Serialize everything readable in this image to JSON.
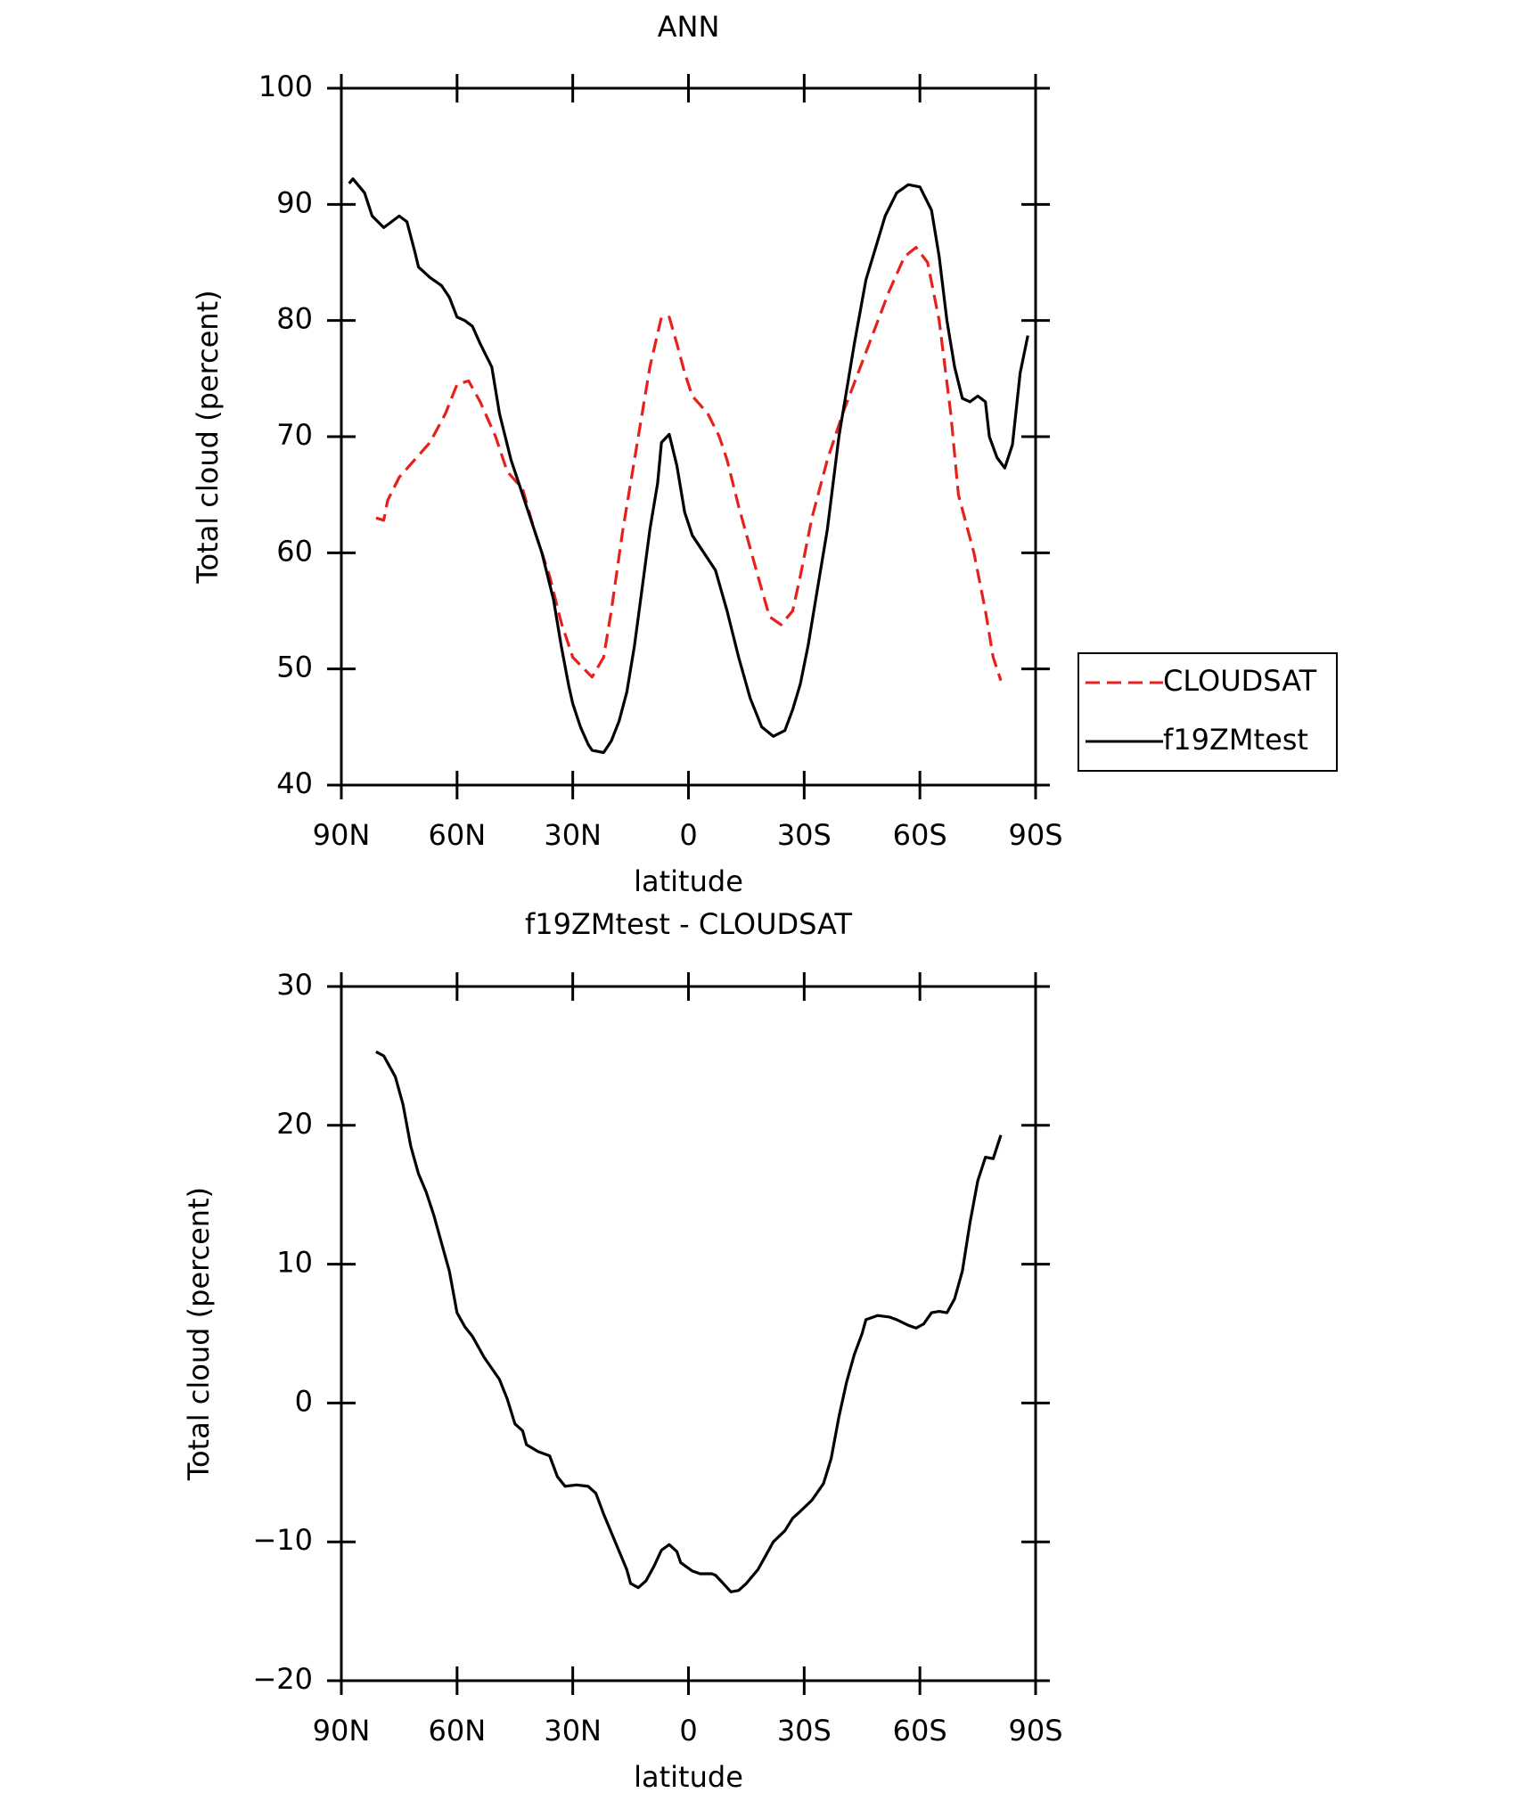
{
  "chart_data": [
    {
      "type": "line",
      "title": "ANN",
      "xlabel": "latitude",
      "ylabel": "Total cloud (percent)",
      "xlim": [
        90,
        -90
      ],
      "xticks": [
        {
          "value": 90,
          "label": "90N"
        },
        {
          "value": 60,
          "label": "60N"
        },
        {
          "value": 30,
          "label": "30N"
        },
        0,
        {
          "value": -30,
          "label": "30S"
        },
        {
          "value": -60,
          "label": "60S"
        },
        {
          "value": -90,
          "label": "90S"
        }
      ],
      "ylim": [
        40,
        100
      ],
      "yticks": [
        40,
        50,
        60,
        70,
        80,
        90,
        100
      ],
      "series": [
        {
          "name": "CLOUDSAT",
          "color": "#e8201c",
          "linestyle": "dashed",
          "x": [
            81,
            79,
            78,
            75,
            71,
            67,
            63,
            60,
            57,
            54,
            50,
            47,
            43,
            40,
            36,
            33,
            30,
            25,
            22,
            20,
            17,
            13,
            10,
            7,
            5,
            3,
            1,
            -1,
            -5,
            -8,
            -10,
            -13,
            -18,
            -21,
            -24,
            -27,
            -29,
            -32,
            -36,
            -40,
            -44,
            -48,
            -52,
            -56,
            -59,
            -62,
            -65,
            -68,
            -70,
            -74,
            -77,
            -79,
            -81
          ],
          "values": [
            63,
            62.8,
            64.5,
            66.5,
            68,
            69.5,
            72,
            74.5,
            74.8,
            73,
            70,
            67,
            65.5,
            62,
            58,
            54,
            51,
            49.3,
            51,
            55,
            62,
            70,
            76,
            80.3,
            80.3,
            78,
            75.5,
            73.5,
            72,
            70,
            68,
            64,
            58,
            54.5,
            53.8,
            55,
            58,
            63,
            68,
            72,
            75.5,
            79,
            82.5,
            85.5,
            86.3,
            85,
            80,
            72,
            65,
            60,
            55,
            51,
            49
          ]
        },
        {
          "name": "f19ZMtest",
          "color": "#000000",
          "linestyle": "solid",
          "x": [
            88,
            87,
            84,
            82,
            79,
            77,
            75,
            73,
            71,
            70,
            67,
            64,
            62,
            60,
            58,
            56,
            54,
            51,
            49,
            46,
            44,
            43,
            40,
            38,
            35,
            33,
            31,
            30,
            28,
            26,
            25,
            22,
            20,
            18,
            16,
            14,
            12,
            10,
            8,
            7,
            5,
            3,
            1,
            -1,
            -4,
            -7,
            -10,
            -13,
            -16,
            -19,
            -22,
            -25,
            -27,
            -29,
            -31,
            -33,
            -36,
            -39,
            -43,
            -46,
            -49,
            -51,
            -54,
            -57,
            -60,
            -63,
            -65,
            -67,
            -69,
            -71,
            -73,
            -75,
            -77,
            -78,
            -80,
            -82,
            -84,
            -86,
            -88
          ],
          "values": [
            91.8,
            92.2,
            91,
            89,
            88,
            88.5,
            89,
            88.5,
            86,
            84.6,
            83.7,
            83,
            82,
            80.3,
            80,
            79.5,
            78,
            76,
            72,
            68,
            66,
            65,
            62,
            60,
            56,
            52,
            48.5,
            47,
            45,
            43.5,
            43,
            42.8,
            43.8,
            45.5,
            48,
            52,
            57,
            62,
            66,
            69.5,
            70.2,
            67.5,
            63.5,
            61.5,
            60,
            58.5,
            55,
            51,
            47.5,
            45,
            44.2,
            44.7,
            46.5,
            48.7,
            52,
            56,
            62,
            70,
            78,
            83.5,
            86.8,
            89,
            91,
            91.7,
            91.5,
            89.5,
            85.5,
            80,
            76,
            73.3,
            73,
            73.5,
            73,
            70,
            68.2,
            67.3,
            69.3,
            75.5,
            78.7
          ]
        }
      ]
    },
    {
      "type": "line",
      "title": "f19ZMtest - CLOUDSAT",
      "xlabel": "latitude",
      "ylabel": "Total cloud (percent)",
      "xlim": [
        90,
        -90
      ],
      "xticks": [
        {
          "value": 90,
          "label": "90N"
        },
        {
          "value": 60,
          "label": "60N"
        },
        {
          "value": 30,
          "label": "30N"
        },
        0,
        {
          "value": -30,
          "label": "30S"
        },
        {
          "value": -60,
          "label": "60S"
        },
        {
          "value": -90,
          "label": "90S"
        }
      ],
      "ylim": [
        -20,
        30
      ],
      "yticks": [
        {
          "value": -20,
          "label": "−20"
        },
        {
          "value": -10,
          "label": "−10"
        },
        0,
        10,
        20,
        30
      ],
      "color": "#000000",
      "x": [
        81,
        79,
        76,
        74,
        72,
        70,
        68,
        66,
        64,
        62,
        60,
        58,
        56,
        54,
        53,
        51,
        49,
        47,
        45,
        43,
        42,
        39,
        36,
        34,
        32,
        29,
        26,
        24,
        22,
        19,
        16,
        15,
        13,
        11,
        9,
        7,
        5,
        3,
        2,
        -1,
        -3,
        -6,
        -7,
        -9,
        -11,
        -13,
        -15,
        -18,
        -20,
        -22,
        -25,
        -27,
        -29,
        -32,
        -35,
        -37,
        -39,
        -41,
        -43,
        -45,
        -46,
        -49,
        -52,
        -54,
        -57,
        -59,
        -61,
        -63,
        -65,
        -67,
        -69,
        -71,
        -73,
        -75,
        -77,
        -79,
        -81
      ],
      "values": [
        25.3,
        25,
        23.5,
        21.5,
        18.5,
        16.5,
        15.2,
        13.5,
        11.5,
        9.5,
        6.5,
        5.5,
        4.8,
        3.8,
        3.3,
        2.5,
        1.7,
        0.3,
        -1.5,
        -2,
        -3,
        -3.5,
        -3.8,
        -5.3,
        -6,
        -5.9,
        -6,
        -6.5,
        -8,
        -10,
        -12,
        -13,
        -13.3,
        -12.8,
        -11.8,
        -10.6,
        -10.2,
        -10.7,
        -11.5,
        -12.1,
        -12.3,
        -12.3,
        -12.4,
        -13,
        -13.6,
        -13.5,
        -13,
        -12,
        -11,
        -10,
        -9.2,
        -8.3,
        -7.8,
        -7,
        -5.8,
        -4,
        -1,
        1.5,
        3.5,
        5,
        6,
        6.3,
        6.2,
        6,
        5.6,
        5.4,
        5.7,
        6.5,
        6.6,
        6.5,
        7.5,
        9.5,
        13,
        16,
        17.7,
        17.6,
        19.3
      ]
    }
  ]
}
